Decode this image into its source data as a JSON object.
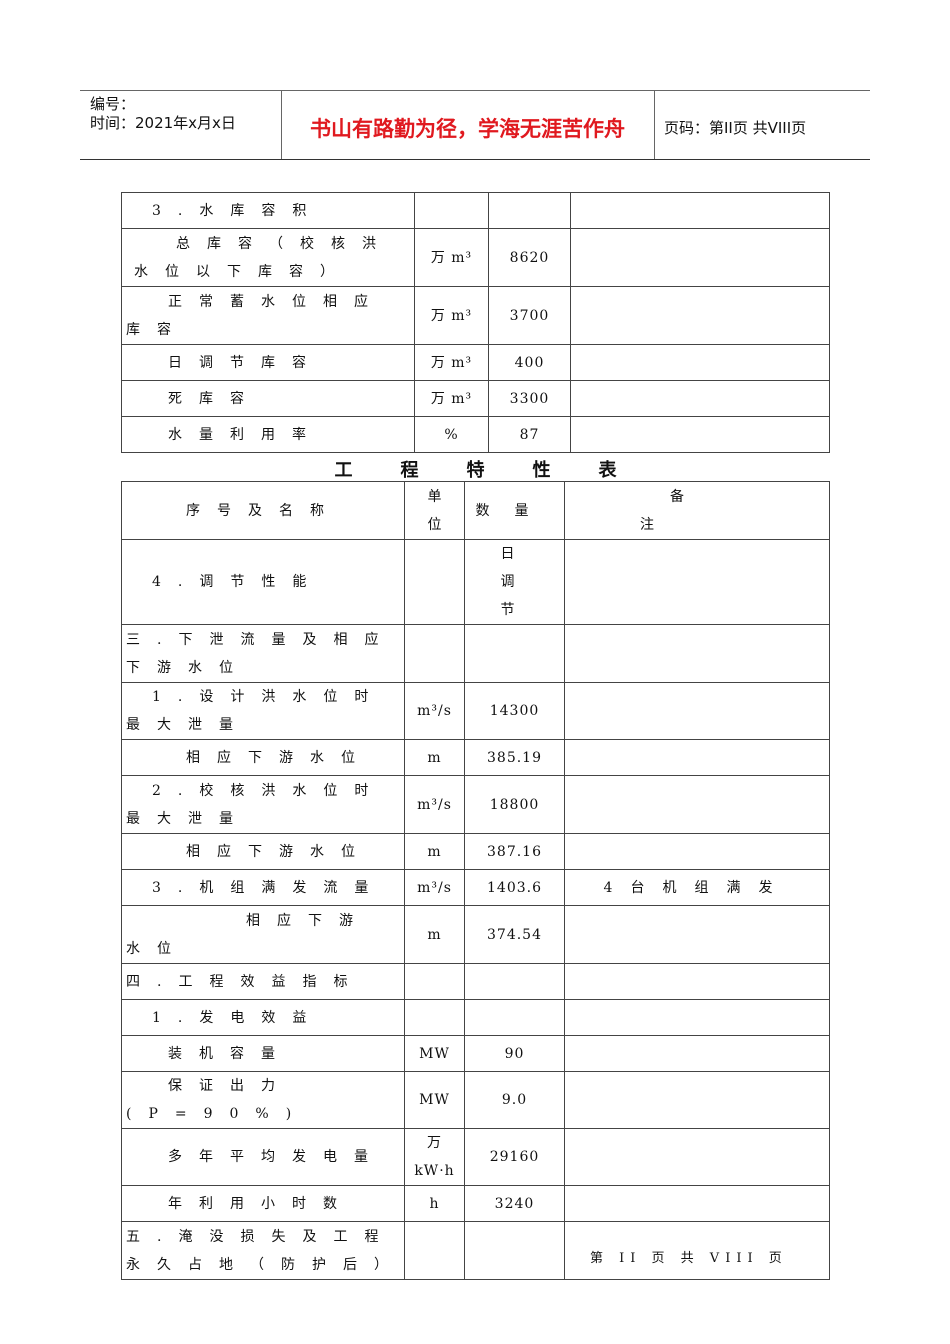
{
  "header": {
    "number_label": "编号：",
    "time_label": "时间：2021年x月x日",
    "motto": "书山有路勤为径，学海无涯苦作舟",
    "page_label": "页码：第II页 共VIII页"
  },
  "table1": {
    "rows": [
      {
        "name": "3.水库容积",
        "unit": "",
        "value": "",
        "note": ""
      },
      {
        "name": "总库容（校核洪水位以下库容）",
        "unit": "万 m³",
        "value": "8620",
        "note": ""
      },
      {
        "name": "正常蓄水位相应库容",
        "unit": "万 m³",
        "value": "3700",
        "note": ""
      },
      {
        "name": "日调节库容",
        "unit": "万 m³",
        "value": "400",
        "note": ""
      },
      {
        "name": "死库容",
        "unit": "万 m³",
        "value": "3300",
        "note": ""
      },
      {
        "name": "水量利用率",
        "unit": "%",
        "value": "87",
        "note": ""
      }
    ]
  },
  "title": "工程特性表",
  "table2": {
    "headers": {
      "name": "序号及名称",
      "unit": "单位",
      "value": "数量",
      "note": "备注"
    },
    "rows": [
      {
        "name": "4.调节性能",
        "unit": "",
        "value": "日调节",
        "note": ""
      },
      {
        "name": "三.下泄流量及相应下游水位",
        "unit": "",
        "value": "",
        "note": ""
      },
      {
        "name": "1.设计洪水位时最大泄量",
        "unit": "m³/s",
        "value": "14300",
        "note": ""
      },
      {
        "name": "相应下游水位",
        "unit": "m",
        "value": "385.19",
        "note": ""
      },
      {
        "name": "2.校核洪水位时最大泄量",
        "unit": "m³/s",
        "value": "18800",
        "note": ""
      },
      {
        "name": "相应下游水位",
        "unit": "m",
        "value": "387.16",
        "note": ""
      },
      {
        "name": "3.机组满发流量",
        "unit": "m³/s",
        "value": "1403.6",
        "note": "4台机组满发"
      },
      {
        "name": "相应下游水位",
        "unit": "m",
        "value": "374.54",
        "note": ""
      },
      {
        "name": "四.工程效益指标",
        "unit": "",
        "value": "",
        "note": ""
      },
      {
        "name": "1.发电效益",
        "unit": "",
        "value": "",
        "note": ""
      },
      {
        "name": "装机容量",
        "unit": "MW",
        "value": "90",
        "note": ""
      },
      {
        "name": "保证出力(P=90%)",
        "unit": "MW",
        "value": "9.0",
        "note": ""
      },
      {
        "name": "多年平均发电量",
        "unit": "万kW·h",
        "value": "29160",
        "note": ""
      },
      {
        "name": "年利用小时数",
        "unit": "h",
        "value": "3240",
        "note": ""
      },
      {
        "name": "五.淹没损失及工程永久占地（防护后）",
        "unit": "",
        "value": "",
        "note": ""
      }
    ]
  },
  "footer": "第 II 页 共 VIII 页"
}
